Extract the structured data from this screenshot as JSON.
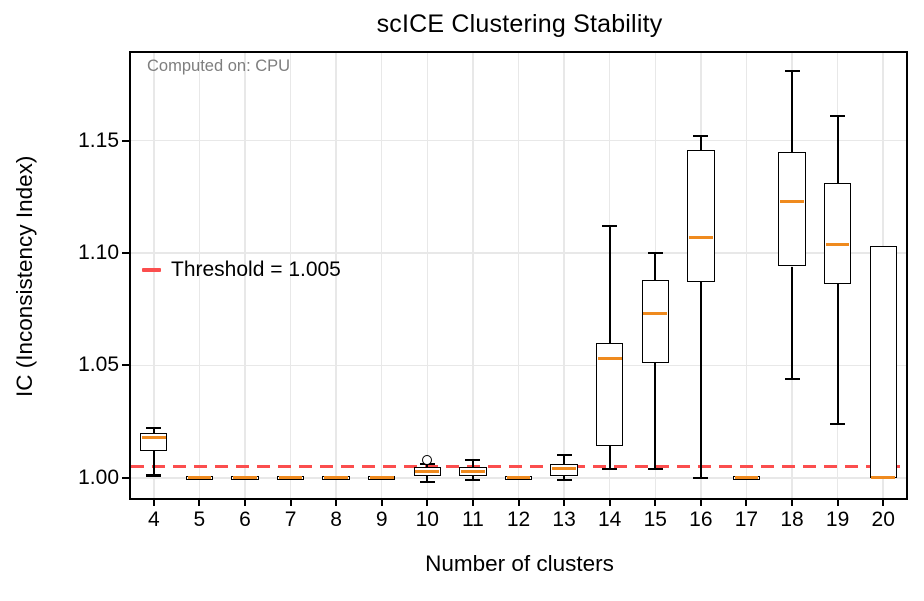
{
  "title": "scICE Clustering Stability",
  "annotation": {
    "text": "Computed on: CPU",
    "color": "#7e7e7e"
  },
  "legend": {
    "label": "Threshold = 1.005"
  },
  "axes": {
    "xlabel": "Number of clusters",
    "ylabel": "IC (Inconsistency Index)",
    "x_tick_labels": [
      "4",
      "5",
      "6",
      "7",
      "8",
      "9",
      "10",
      "11",
      "12",
      "13",
      "14",
      "15",
      "16",
      "17",
      "18",
      "19",
      "20"
    ],
    "y_tick_labels": [
      "1.00",
      "1.05",
      "1.10",
      "1.15"
    ]
  },
  "colors": {
    "median": "#ef8a1e",
    "threshold": "#fb4e4e",
    "box_edge": "#000000",
    "grid": "#e8e8e8",
    "annotation": "#7e7e7e",
    "background": "#ffffff"
  },
  "chart_data": {
    "type": "boxplot",
    "title": "scICE Clustering Stability",
    "xlabel": "Number of clusters",
    "ylabel": "IC (Inconsistency Index)",
    "annotation": "Computed on: CPU",
    "legend_label": "Threshold = 1.005",
    "legend_position": "center-left",
    "threshold": 1.005,
    "grid": true,
    "categories": [
      4,
      5,
      6,
      7,
      8,
      9,
      10,
      11,
      12,
      13,
      14,
      15,
      16,
      17,
      18,
      19,
      20
    ],
    "y_ticks": [
      1.0,
      1.05,
      1.1,
      1.15
    ],
    "xlim": [
      3.5,
      20.5
    ],
    "ylim": [
      0.991,
      1.189
    ],
    "boxes": [
      {
        "cluster": 4,
        "whislo": 1.001,
        "q1": 1.012,
        "med": 1.018,
        "q3": 1.02,
        "whishi": 1.022,
        "fliers": []
      },
      {
        "cluster": 5,
        "whislo": 1.0,
        "q1": 1.0,
        "med": 1.0,
        "q3": 1.0,
        "whishi": 1.0,
        "fliers": []
      },
      {
        "cluster": 6,
        "whislo": 1.0,
        "q1": 1.0,
        "med": 1.0,
        "q3": 1.0,
        "whishi": 1.0,
        "fliers": []
      },
      {
        "cluster": 7,
        "whislo": 1.0,
        "q1": 1.0,
        "med": 1.0,
        "q3": 1.0,
        "whishi": 1.0,
        "fliers": []
      },
      {
        "cluster": 8,
        "whislo": 1.0,
        "q1": 1.0,
        "med": 1.0,
        "q3": 1.0,
        "whishi": 1.0,
        "fliers": []
      },
      {
        "cluster": 9,
        "whislo": 1.0,
        "q1": 1.0,
        "med": 1.0,
        "q3": 1.0,
        "whishi": 1.0,
        "fliers": []
      },
      {
        "cluster": 10,
        "whislo": 0.998,
        "q1": 1.001,
        "med": 1.003,
        "q3": 1.005,
        "whishi": 1.006,
        "fliers": [
          1.008
        ]
      },
      {
        "cluster": 11,
        "whislo": 0.999,
        "q1": 1.001,
        "med": 1.003,
        "q3": 1.005,
        "whishi": 1.008,
        "fliers": []
      },
      {
        "cluster": 12,
        "whislo": 1.0,
        "q1": 1.0,
        "med": 1.0,
        "q3": 1.0,
        "whishi": 1.0,
        "fliers": []
      },
      {
        "cluster": 13,
        "whislo": 0.999,
        "q1": 1.001,
        "med": 1.004,
        "q3": 1.006,
        "whishi": 1.01,
        "fliers": []
      },
      {
        "cluster": 14,
        "whislo": 1.004,
        "q1": 1.014,
        "med": 1.053,
        "q3": 1.06,
        "whishi": 1.112,
        "fliers": []
      },
      {
        "cluster": 15,
        "whislo": 1.004,
        "q1": 1.051,
        "med": 1.073,
        "q3": 1.088,
        "whishi": 1.1,
        "fliers": []
      },
      {
        "cluster": 16,
        "whislo": 1.0,
        "q1": 1.087,
        "med": 1.107,
        "q3": 1.146,
        "whishi": 1.152,
        "fliers": []
      },
      {
        "cluster": 17,
        "whislo": 1.0,
        "q1": 1.0,
        "med": 1.0,
        "q3": 1.0,
        "whishi": 1.0,
        "fliers": []
      },
      {
        "cluster": 18,
        "whislo": 1.044,
        "q1": 1.094,
        "med": 1.123,
        "q3": 1.145,
        "whishi": 1.181,
        "fliers": []
      },
      {
        "cluster": 19,
        "whislo": 1.024,
        "q1": 1.086,
        "med": 1.104,
        "q3": 1.131,
        "whishi": 1.161,
        "fliers": []
      },
      {
        "cluster": 20,
        "whislo": 1.0,
        "q1": 1.0,
        "med": 1.0,
        "q3": 1.103,
        "whishi": 1.103,
        "fliers": []
      }
    ]
  }
}
